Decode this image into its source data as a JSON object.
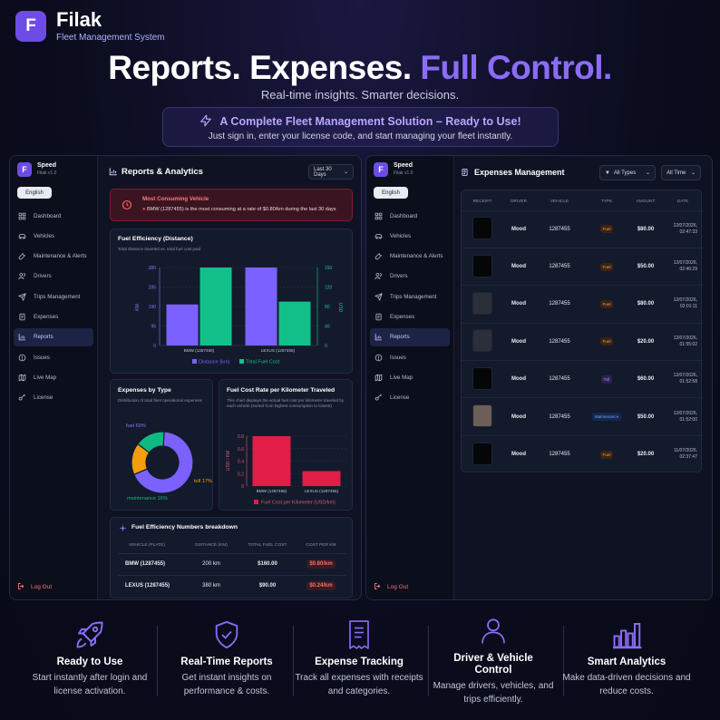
{
  "brand": {
    "logo_letter": "F",
    "name": "Filak",
    "subtitle": "Fleet Management System"
  },
  "hero": {
    "title_part1": "Reports. Expenses.",
    "title_accent": "Full Control.",
    "subtitle": "Real-time insights. Smarter decisions.",
    "banner_title": "A Complete Fleet Management Solution – Ready to Use!",
    "banner_sub": "Just sign in, enter your license code, and start managing your fleet instantly.",
    "accent_color": "#8b6cf6"
  },
  "sidebar": {
    "logo_letter": "F",
    "app_name": "Speed",
    "version": "Filak v1.0",
    "language": "English",
    "items": [
      {
        "label": "Dashboard",
        "icon": "dashboard-icon"
      },
      {
        "label": "Vehicles",
        "icon": "car-icon"
      },
      {
        "label": "Maintenance & Alerts",
        "icon": "wrench-icon"
      },
      {
        "label": "Drivers",
        "icon": "users-icon"
      },
      {
        "label": "Trips Management",
        "icon": "send-icon"
      },
      {
        "label": "Expenses",
        "icon": "receipt-icon"
      },
      {
        "label": "Reports",
        "icon": "chart-icon"
      },
      {
        "label": "Issues",
        "icon": "alert-icon"
      },
      {
        "label": "Live Map",
        "icon": "map-icon"
      },
      {
        "label": "License",
        "icon": "key-icon"
      }
    ],
    "active": "Reports",
    "logout": "Log Out"
  },
  "reports": {
    "title": "Reports & Analytics",
    "period": "Last 30 Days",
    "alert_title": "Most Consuming Vehicle",
    "alert_text": "BMW (1287455) is the most consuming at a rate of $0.80/km during the last 30 days",
    "fuel_eff_title": "Fuel Efficiency (Distance)",
    "fuel_eff_sub": "Total distance traveled vs. total fuel cost paid",
    "exp_type_title": "Expenses by Type",
    "exp_type_sub": "Distribution of total fleet operational expenses",
    "cost_rate_title": "Fuel Cost Rate per Kilometer Traveled",
    "cost_rate_sub": "This chart displays the actual fuel cost per kilometer traveled by each vehicle (sorted from highest consumption to lowest)",
    "breakdown_title": "Fuel Efficiency Numbers breakdown",
    "table_headers": [
      "VEHICLE (PLATE)",
      "DISTANCE (KM)",
      "TOTAL FUEL COST",
      "COST PER KM"
    ],
    "table_rows": [
      {
        "vehicle": "BMW (1287455)",
        "distance": "200 km",
        "fuel": "$160.00",
        "cpk": "$0.80/km"
      },
      {
        "vehicle": "LEXUS (1287455)",
        "distance": "380 km",
        "fuel": "$90.00",
        "cpk": "$0.24/km"
      }
    ]
  },
  "chart_data": [
    {
      "type": "bar",
      "title": "Fuel Efficiency (Distance)",
      "categories": [
        "BMW (1287455)",
        "LEXUS (1287455)"
      ],
      "series": [
        {
          "name": "Distance (km)",
          "values": [
            200,
            380
          ],
          "color": "#7b61ff",
          "axis": "left"
        },
        {
          "name": "Total Fuel Cost",
          "values": [
            160,
            90
          ],
          "color": "#14c08a",
          "axis": "right"
        }
      ],
      "ylabel": "KM",
      "ylabel_right": "USD",
      "ylim": [
        0,
        380
      ],
      "y_ticks": [
        "0",
        "95",
        "190",
        "285",
        "380"
      ],
      "ylim_right": [
        0,
        160
      ],
      "y_ticks_right": [
        "0",
        "40",
        "80",
        "120",
        "160"
      ],
      "legend": "bottom"
    },
    {
      "type": "pie",
      "title": "Expenses by Type",
      "labels": [
        "fuel 69%",
        "toll 17%",
        "maintenance 16%"
      ],
      "values": [
        69,
        17,
        16
      ],
      "colors": [
        "#7b61ff",
        "#f59e0b",
        "#10b981"
      ]
    },
    {
      "type": "bar",
      "title": "Fuel Cost Rate per Kilometer Traveled",
      "categories": [
        "BMW (1287455)",
        "LEXUS (1287455)"
      ],
      "series": [
        {
          "name": "Fuel Cost per Kilometer (USD/km)",
          "values": [
            0.8,
            0.24
          ],
          "color": "#e11d48"
        }
      ],
      "ylabel": "USD / KM",
      "ylim": [
        0,
        0.8
      ],
      "y_ticks": [
        "0",
        "0.2",
        "0.4",
        "0.6",
        "0.8"
      ],
      "legend": "bottom"
    }
  ],
  "expenses": {
    "title": "Expenses Management",
    "filter_type": "All Types",
    "filter_time": "All Time",
    "headers": [
      "RECEIPT",
      "DRIVER",
      "VEHICLE",
      "TYPE",
      "AMOUNT",
      "DATE"
    ],
    "rows": [
      {
        "driver": "Mood",
        "vehicle": "1287455",
        "type": "Fuel",
        "type_class": "fuel",
        "amount": "$80.00",
        "date1": "12/07/2026,",
        "date2": "02:47:33"
      },
      {
        "driver": "Mood",
        "vehicle": "1287455",
        "type": "Fuel",
        "type_class": "fuel",
        "amount": "$50.00",
        "date1": "12/07/2026,",
        "date2": "02:46:29"
      },
      {
        "driver": "Mood",
        "vehicle": "1287455",
        "type": "Fuel",
        "type_class": "fuel",
        "amount": "$80.00",
        "date1": "12/07/2026,",
        "date2": "02:01:11"
      },
      {
        "driver": "Mood",
        "vehicle": "1287455",
        "type": "Fuel",
        "type_class": "fuel",
        "amount": "$20.00",
        "date1": "12/07/2026,",
        "date2": "01:55:02"
      },
      {
        "driver": "Mood",
        "vehicle": "1287455",
        "type": "Toll",
        "type_class": "toll",
        "amount": "$60.00",
        "date1": "12/07/2026,",
        "date2": "01:52:58"
      },
      {
        "driver": "Mood",
        "vehicle": "1287455",
        "type": "Maintenance",
        "type_class": "maint",
        "amount": "$50.00",
        "date1": "12/07/2026,",
        "date2": "01:52:00"
      },
      {
        "driver": "Mood",
        "vehicle": "1287455",
        "type": "Fuel",
        "type_class": "fuel",
        "amount": "$20.00",
        "date1": "11/07/2026,",
        "date2": "02:37:47"
      }
    ]
  },
  "features": [
    {
      "icon": "rocket-icon",
      "title": "Ready to Use",
      "desc": "Start instantly after login and license activation."
    },
    {
      "icon": "shield-check-icon",
      "title": "Real-Time Reports",
      "desc": "Get instant insights on performance & costs."
    },
    {
      "icon": "receipt-icon",
      "title": "Expense Tracking",
      "desc": "Track all expenses with receipts and categories."
    },
    {
      "icon": "user-icon",
      "title": "Driver & Vehicle Control",
      "desc": "Manage drivers, vehicles, and trips efficiently."
    },
    {
      "icon": "bar-chart-icon",
      "title": "Smart Analytics",
      "desc": "Make data-driven decisions and reduce costs."
    }
  ]
}
